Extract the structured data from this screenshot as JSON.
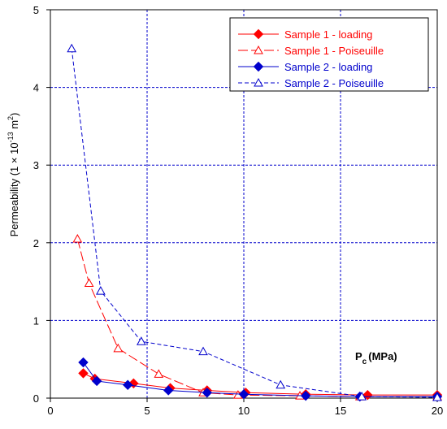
{
  "chart_data": {
    "type": "line",
    "xlabel": "P",
    "xlabel_sub": "c",
    "xlabel_unit": "(MPa)",
    "ylabel": "Permeability (1 × 10",
    "ylabel_exp": "-13",
    "ylabel_unit": " m",
    "ylabel_unit_exp": "2",
    "ylabel_close": ")",
    "xlim": [
      0,
      20
    ],
    "ylim": [
      0,
      5
    ],
    "xticks": [
      "0",
      "5",
      "10",
      "15",
      "20"
    ],
    "yticks": [
      "0",
      "1",
      "2",
      "3",
      "4",
      "5"
    ],
    "grid": true,
    "legend_position": "top-right",
    "colors": {
      "red": "#ff0000",
      "blue": "#0000cc"
    },
    "series": [
      {
        "name": "Sample 1 - loading",
        "color": "#ff0000",
        "marker": "diamond",
        "filled": true,
        "dash": "solid",
        "x": [
          1.7,
          2.3,
          4.3,
          6.2,
          8.1,
          10.1,
          13.2,
          16.4,
          20.0
        ],
        "y": [
          0.32,
          0.25,
          0.19,
          0.13,
          0.1,
          0.07,
          0.05,
          0.04,
          0.04
        ]
      },
      {
        "name": "Sample 1 - Poiseuille",
        "color": "#ff0000",
        "marker": "triangle",
        "filled": false,
        "dash": "longdash",
        "x": [
          1.4,
          2.0,
          3.5,
          5.6,
          7.9,
          9.7,
          12.9,
          16.0,
          20.0
        ],
        "y": [
          2.05,
          1.48,
          0.64,
          0.31,
          0.07,
          0.04,
          0.03,
          0.02,
          0.02
        ]
      },
      {
        "name": "Sample 2 - loading",
        "color": "#0000cc",
        "marker": "diamond",
        "filled": true,
        "dash": "solid",
        "x": [
          1.7,
          2.4,
          4.0,
          6.1,
          8.1,
          10.0,
          13.2,
          16.0,
          20.0
        ],
        "y": [
          0.46,
          0.22,
          0.17,
          0.1,
          0.07,
          0.05,
          0.03,
          0.02,
          0.02
        ]
      },
      {
        "name": "Sample 2 - Poiseuille",
        "color": "#0000cc",
        "marker": "triangle",
        "filled": false,
        "dash": "shortdash",
        "x": [
          1.1,
          2.6,
          4.7,
          7.9,
          11.9,
          16.1,
          20.0
        ],
        "y": [
          4.5,
          1.38,
          0.73,
          0.6,
          0.17,
          0.02,
          0.01
        ]
      }
    ]
  }
}
